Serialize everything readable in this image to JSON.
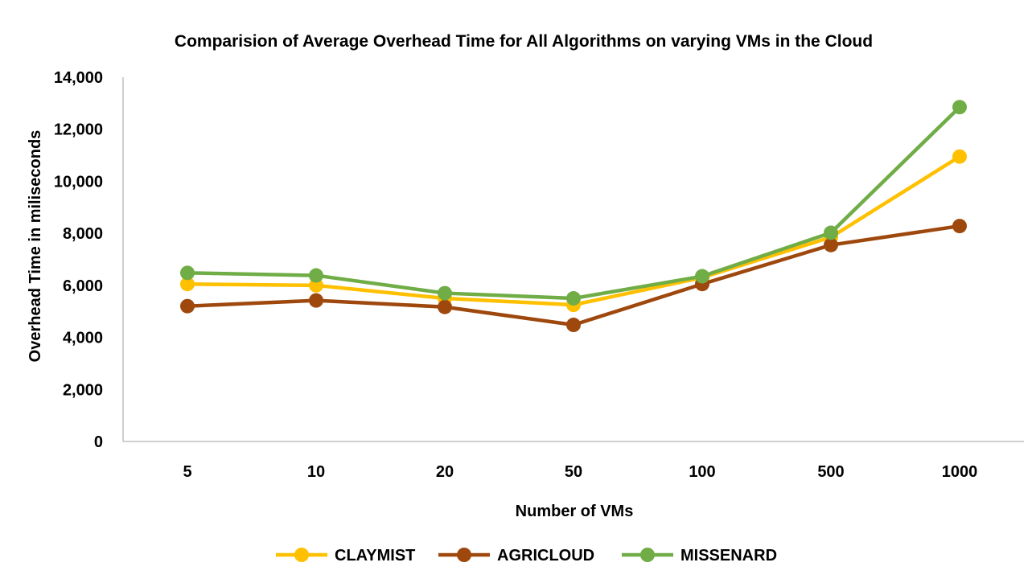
{
  "chart_data": {
    "type": "line",
    "title": "Comparision of Average Overhead Time for All Algorithms on varying  VMs  in the Cloud",
    "xlabel": "Number of VMs",
    "ylabel": "Overhead Time in miliseconds",
    "categories": [
      "5",
      "10",
      "20",
      "50",
      "100",
      "500",
      "1000"
    ],
    "ylim": [
      0,
      14000
    ],
    "yticks": [
      0,
      2000,
      4000,
      6000,
      8000,
      10000,
      12000,
      14000
    ],
    "ytick_labels": [
      "0",
      "2,000",
      "4,000",
      "6,000",
      "8,000",
      "10,000",
      "12,000",
      "14,000"
    ],
    "grid": false,
    "legend_position": "bottom",
    "series": [
      {
        "name": "CLAYMIST",
        "color": "#FFC000",
        "values": [
          6050,
          6000,
          5500,
          5250,
          6300,
          7850,
          10950
        ]
      },
      {
        "name": "AGRICLOUD",
        "color": "#9E480E",
        "values": [
          5200,
          5420,
          5170,
          4480,
          6050,
          7550,
          8280
        ]
      },
      {
        "name": "MISSENARD",
        "color": "#70AD47",
        "values": [
          6480,
          6380,
          5700,
          5500,
          6350,
          8020,
          12850
        ]
      }
    ]
  }
}
